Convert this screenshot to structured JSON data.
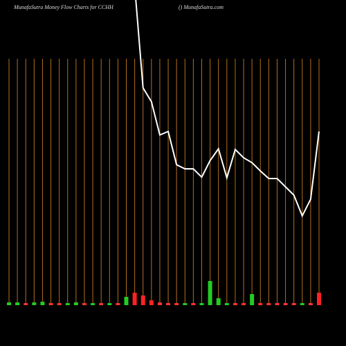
{
  "chart_data": {
    "type": "money-flow",
    "title": "MunafaSutra  Money Flow  Charts for CCHH",
    "subtitle": "() MunafaSutra.com",
    "background": "#000000",
    "grid": true,
    "grid_color": "#b5701c",
    "line": {
      "color": "#ffffff",
      "values": [
        null,
        null,
        null,
        null,
        null,
        null,
        null,
        null,
        null,
        null,
        null,
        null,
        null,
        null,
        null,
        520,
        373,
        353,
        305,
        310,
        262,
        256,
        256,
        244,
        268,
        285,
        243,
        284,
        272,
        265,
        253,
        242,
        242,
        230,
        218,
        188,
        212,
        310
      ],
      "ylim": [
        0,
        500
      ]
    },
    "bars": {
      "values": [
        4,
        4,
        3,
        4,
        5,
        3,
        3,
        3,
        4,
        3,
        3,
        3,
        3,
        3,
        12,
        18,
        14,
        7,
        4,
        3,
        3,
        3,
        3,
        3,
        35,
        10,
        3,
        3,
        3,
        16,
        3,
        3,
        3,
        3,
        3,
        3,
        3,
        18
      ],
      "colors": [
        "#22cc22",
        "#22cc22",
        "#ff3333",
        "#22cc22",
        "#22cc22",
        "#ff3333",
        "#ff3333",
        "#22cc22",
        "#22cc22",
        "#ff3333",
        "#22cc22",
        "#ff3333",
        "#22cc22",
        "#ff3333",
        "#22cc22",
        "#ff2222",
        "#ff2222",
        "#ff2222",
        "#ff3333",
        "#ff3333",
        "#ff3333",
        "#22cc22",
        "#ff3333",
        "#22cc22",
        "#22cc22",
        "#22cc22",
        "#22cc22",
        "#ff3333",
        "#ff3333",
        "#22cc22",
        "#ff3333",
        "#ff3333",
        "#ff3333",
        "#ff3333",
        "#ff3333",
        "#22cc22",
        "#ff3333",
        "#ff2222"
      ],
      "ylim": [
        0,
        100
      ]
    }
  }
}
